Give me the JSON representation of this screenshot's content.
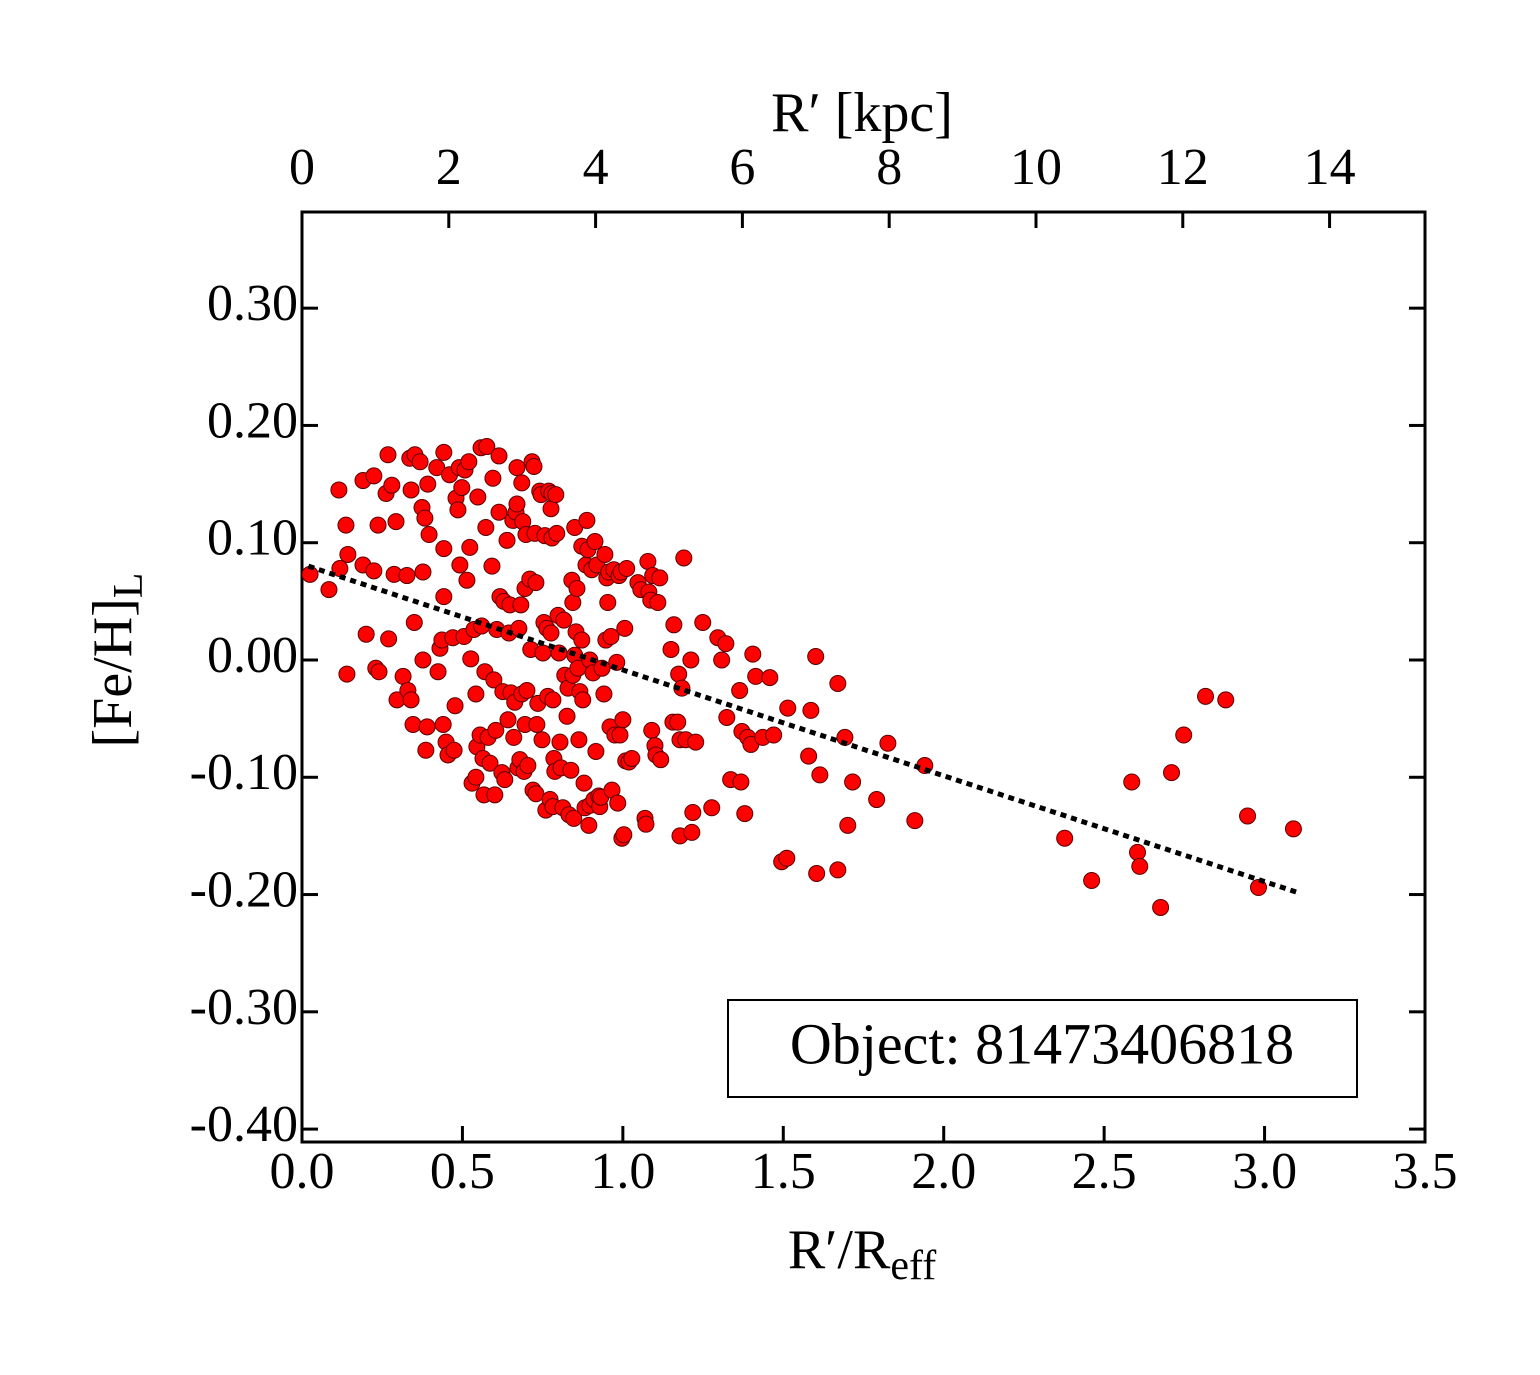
{
  "chart_data": {
    "type": "scatter",
    "xlabel": {
      "text": "R′/R",
      "sub": "eff"
    },
    "ylabel": {
      "text": "[Fe/H]",
      "sub": "L"
    },
    "x2label": "R′ [kpc]",
    "annotation": "Object: 81473406818",
    "color": "#ff0000",
    "xlim": [
      0,
      3.5
    ],
    "xticks": [
      {
        "value": 0,
        "label": "0.0"
      },
      0.5,
      {
        "value": 1,
        "label": "1.0"
      },
      1.5,
      {
        "value": 2,
        "label": "2.0"
      },
      2.5,
      {
        "value": 3,
        "label": "3.0"
      },
      3.5
    ],
    "x2lim": [
      0,
      15.3
    ],
    "x2ticks": [
      0,
      2,
      4,
      6,
      8,
      10,
      12,
      14
    ],
    "ylim": [
      -0.411,
      0.382
    ],
    "yticks": [
      {
        "value": -0.4,
        "label": "-0.40"
      },
      {
        "value": -0.3,
        "label": "-0.30"
      },
      {
        "value": -0.2,
        "label": "-0.20"
      },
      {
        "value": -0.1,
        "label": "-0.10"
      },
      {
        "value": 0,
        "label": "0.00"
      },
      {
        "value": 0.1,
        "label": "0.10"
      },
      {
        "value": 0.2,
        "label": "0.20"
      },
      {
        "value": 0.3,
        "label": "0.30"
      }
    ],
    "x": [
      0.025,
      0.084,
      0.115,
      0.118,
      0.137,
      0.143,
      0.14,
      0.19,
      0.19,
      0.2,
      0.224,
      0.224,
      0.23,
      0.237,
      0.24,
      0.262,
      0.268,
      0.27,
      0.28,
      0.287,
      0.293,
      0.296,
      0.315,
      0.327,
      0.33,
      0.336,
      0.34,
      0.34,
      0.346,
      0.35,
      0.352,
      0.368,
      0.374,
      0.377,
      0.377,
      0.383,
      0.386,
      0.39,
      0.392,
      0.396,
      0.42,
      0.424,
      0.43,
      0.436,
      0.442,
      0.442,
      0.44,
      0.442,
      0.449,
      0.455,
      0.46,
      0.47,
      0.474,
      0.477,
      0.48,
      0.486,
      0.49,
      0.492,
      0.498,
      0.505,
      0.508,
      0.514,
      0.52,
      0.523,
      0.526,
      0.53,
      0.536,
      0.542,
      0.542,
      0.545,
      0.548,
      0.555,
      0.558,
      0.56,
      0.564,
      0.567,
      0.57,
      0.573,
      0.576,
      0.58,
      0.586,
      0.592,
      0.595,
      0.598,
      0.601,
      0.604,
      0.607,
      0.614,
      0.614,
      0.617,
      0.623,
      0.626,
      0.629,
      0.632,
      0.639,
      0.642,
      0.645,
      0.648,
      0.651,
      0.657,
      0.66,
      0.663,
      0.667,
      0.67,
      0.67,
      0.673,
      0.676,
      0.679,
      0.682,
      0.685,
      0.685,
      0.688,
      0.692,
      0.695,
      0.695,
      0.698,
      0.701,
      0.704,
      0.71,
      0.713,
      0.717,
      0.72,
      0.723,
      0.726,
      0.729,
      0.729,
      0.732,
      0.735,
      0.741,
      0.745,
      0.748,
      0.751,
      0.754,
      0.757,
      0.76,
      0.763,
      0.766,
      0.769,
      0.773,
      0.776,
      0.776,
      0.779,
      0.779,
      0.782,
      0.782,
      0.785,
      0.788,
      0.791,
      0.794,
      0.798,
      0.801,
      0.804,
      0.807,
      0.813,
      0.816,
      0.819,
      0.826,
      0.829,
      0.832,
      0.838,
      0.841,
      0.844,
      0.844,
      0.847,
      0.85,
      0.85,
      0.854,
      0.857,
      0.86,
      0.863,
      0.866,
      0.872,
      0.872,
      0.875,
      0.879,
      0.882,
      0.885,
      0.888,
      0.891,
      0.894,
      0.897,
      0.897,
      0.903,
      0.907,
      0.91,
      0.913,
      0.916,
      0.919,
      0.925,
      0.928,
      0.931,
      0.935,
      0.941,
      0.944,
      0.947,
      0.95,
      0.953,
      0.956,
      0.96,
      0.963,
      0.966,
      0.972,
      0.975,
      0.981,
      0.984,
      0.988,
      0.991,
      0.994,
      0.997,
      1.0,
      1.003,
      1.006,
      1.009,
      1.012,
      1.019,
      1.028,
      1.047,
      1.056,
      1.069,
      1.072,
      1.078,
      1.081,
      1.087,
      1.09,
      1.093,
      1.1,
      1.103,
      1.109,
      1.115,
      1.118,
      1.15,
      1.156,
      1.159,
      1.171,
      1.174,
      1.178,
      1.178,
      1.184,
      1.19,
      1.196,
      1.212,
      1.215,
      1.218,
      1.227,
      1.249,
      1.277,
      1.296,
      1.308,
      1.321,
      1.324,
      1.336,
      1.364,
      1.368,
      1.371,
      1.38,
      1.389,
      1.399,
      1.405,
      1.414,
      1.436,
      1.458,
      1.47,
      1.495,
      1.511,
      1.514,
      1.579,
      1.586,
      1.601,
      1.604,
      1.614,
      1.67,
      1.67,
      1.692,
      1.701,
      1.716,
      1.791,
      1.826,
      1.91,
      1.941,
      2.377,
      2.461,
      2.586,
      2.604,
      2.611,
      2.676,
      2.71,
      2.748,
      2.816,
      2.879,
      2.947,
      2.981,
      3.09
    ],
    "values": [
      0.073,
      0.06,
      0.145,
      0.078,
      0.115,
      0.09,
      -0.012,
      0.153,
      0.081,
      0.022,
      0.157,
      0.076,
      -0.007,
      0.115,
      -0.01,
      0.142,
      0.175,
      0.018,
      0.149,
      0.073,
      0.118,
      -0.034,
      -0.014,
      0.072,
      -0.026,
      0.172,
      0.145,
      -0.034,
      -0.055,
      0.032,
      0.175,
      0.169,
      0.13,
      0.075,
      0.0,
      0.121,
      -0.077,
      -0.057,
      0.15,
      0.107,
      0.164,
      -0.01,
      0.01,
      0.017,
      0.177,
      0.054,
      -0.055,
      0.095,
      -0.07,
      -0.081,
      0.158,
      0.019,
      -0.077,
      -0.039,
      0.138,
      0.128,
      0.164,
      0.081,
      0.147,
      0.02,
      0.162,
      0.068,
      0.169,
      0.096,
      0.001,
      -0.105,
      0.026,
      -0.029,
      -0.1,
      -0.074,
      0.139,
      -0.064,
      0.181,
      0.029,
      -0.084,
      -0.115,
      -0.01,
      0.113,
      0.182,
      -0.066,
      -0.088,
      0.08,
      0.155,
      -0.017,
      -0.115,
      -0.06,
      0.026,
      0.174,
      0.126,
      0.054,
      -0.096,
      -0.027,
      0.05,
      -0.102,
      0.102,
      -0.051,
      0.023,
      0.047,
      -0.028,
      0.119,
      -0.066,
      -0.036,
      0.126,
      0.164,
      0.133,
      -0.092,
      0.027,
      -0.085,
      0.047,
      -0.029,
      0.151,
      0.118,
      -0.095,
      -0.055,
      0.061,
      0.107,
      -0.026,
      -0.09,
      0.069,
      0.009,
      0.169,
      -0.111,
      0.165,
      0.108,
      -0.114,
      0.066,
      -0.055,
      -0.037,
      0.144,
      0.141,
      -0.068,
      0.006,
      0.032,
      0.106,
      -0.128,
      0.027,
      -0.031,
      0.144,
      -0.119,
      0.129,
      0.023,
      0.142,
      0.104,
      -0.034,
      -0.125,
      -0.084,
      -0.095,
      0.141,
      0.108,
      0.038,
      0.006,
      -0.07,
      -0.092,
      -0.126,
      0.034,
      -0.013,
      -0.048,
      -0.024,
      -0.132,
      -0.094,
      0.068,
      0.049,
      -0.013,
      -0.135,
      0.113,
      0.004,
      0.024,
      0.061,
      -0.007,
      -0.068,
      -0.027,
      0.097,
      0.017,
      -0.034,
      -0.105,
      -0.126,
      0.081,
      0.119,
      0.094,
      -0.141,
      -0.124,
      0.0,
      0.077,
      -0.011,
      -0.119,
      0.101,
      -0.078,
      0.081,
      -0.116,
      -0.125,
      -0.117,
      -0.007,
      -0.029,
      0.09,
      0.017,
      0.07,
      0.049,
      0.075,
      -0.057,
      0.02,
      -0.111,
      0.077,
      -0.064,
      -0.002,
      -0.122,
      0.072,
      -0.064,
      0.075,
      -0.152,
      -0.051,
      -0.149,
      0.027,
      -0.086,
      0.078,
      -0.087,
      -0.084,
      0.066,
      0.06,
      -0.135,
      -0.14,
      0.084,
      0.058,
      0.051,
      -0.06,
      0.072,
      -0.073,
      -0.081,
      0.049,
      0.07,
      -0.085,
      0.009,
      -0.053,
      0.03,
      -0.053,
      -0.012,
      -0.068,
      -0.15,
      -0.024,
      0.087,
      -0.068,
      0.0,
      -0.147,
      -0.13,
      -0.07,
      0.032,
      -0.126,
      0.019,
      0.0,
      0.014,
      -0.049,
      -0.102,
      -0.026,
      -0.104,
      -0.061,
      -0.131,
      -0.066,
      -0.072,
      0.005,
      -0.014,
      -0.066,
      -0.015,
      -0.064,
      -0.172,
      -0.169,
      -0.041,
      -0.082,
      -0.043,
      0.003,
      -0.182,
      -0.098,
      -0.179,
      -0.02,
      -0.066,
      -0.141,
      -0.104,
      -0.119,
      -0.071,
      -0.137,
      -0.09,
      -0.152,
      -0.188,
      -0.104,
      -0.164,
      -0.176,
      -0.211,
      -0.096,
      -0.064,
      -0.031,
      -0.034,
      -0.133,
      -0.194,
      -0.144
    ],
    "fit": {
      "x": [
        0.02,
        3.1
      ],
      "values": [
        0.08,
        -0.198
      ],
      "color": "#000000"
    }
  }
}
